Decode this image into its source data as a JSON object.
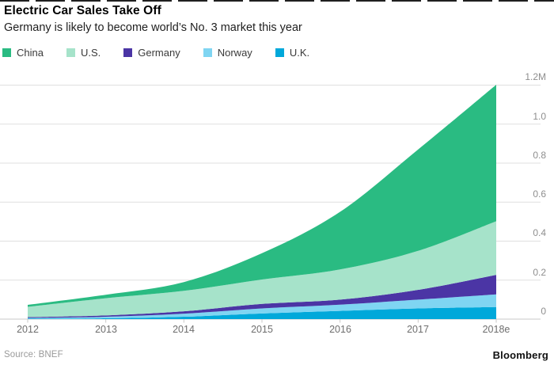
{
  "header": {
    "title": "Electric Car Sales Take Off",
    "subtitle": "Germany is likely to become world’s No. 3 market this year"
  },
  "legend": {
    "items": [
      {
        "label": "China",
        "color": "#2abb82"
      },
      {
        "label": "U.S.",
        "color": "#a6e3ca"
      },
      {
        "label": "Germany",
        "color": "#4b35a5"
      },
      {
        "label": "Norway",
        "color": "#7fd5f2"
      },
      {
        "label": "U.K.",
        "color": "#00a8da"
      }
    ]
  },
  "axes": {
    "y_labels": [
      "1.2M",
      "1.0",
      "0.8",
      "0.6",
      "0.4",
      "0.2",
      "0"
    ],
    "grid_color": "#dfdfdf",
    "axis_color": "#c9c9c9"
  },
  "chart_data": {
    "type": "area",
    "stacked": true,
    "title": "Electric Car Sales Take Off",
    "subtitle": "Germany is likely to become world’s No. 3 market this year",
    "unit": "millions of vehicles sold",
    "categories": [
      "2012",
      "2013",
      "2014",
      "2015",
      "2016",
      "2017",
      "2018e"
    ],
    "series": [
      {
        "name": "China",
        "color": "#2abb82",
        "values": [
          0.01,
          0.018,
          0.045,
          0.135,
          0.295,
          0.52,
          0.7
        ]
      },
      {
        "name": "U.S.",
        "color": "#a6e3ca",
        "values": [
          0.053,
          0.088,
          0.105,
          0.125,
          0.155,
          0.2,
          0.275
        ]
      },
      {
        "name": "Germany",
        "color": "#4b35a5",
        "values": [
          0.004,
          0.007,
          0.012,
          0.023,
          0.026,
          0.05,
          0.1
        ]
      },
      {
        "name": "Norway",
        "color": "#7fd5f2",
        "values": [
          0.004,
          0.008,
          0.016,
          0.026,
          0.032,
          0.045,
          0.065
        ]
      },
      {
        "name": "U.K.",
        "color": "#00a8da",
        "values": [
          0.002,
          0.004,
          0.012,
          0.029,
          0.042,
          0.055,
          0.062
        ]
      }
    ],
    "stack_order_bottom_to_top": [
      "U.K.",
      "Norway",
      "Germany",
      "U.S.",
      "China"
    ],
    "ylim": [
      0,
      1.2
    ],
    "y_ticks": [
      "0",
      "0.2",
      "0.4",
      "0.6",
      "0.8",
      "1.0",
      "1.2M"
    ],
    "grid": "horizontal",
    "legend_position": "top"
  },
  "footer": {
    "source": "Source: BNEF",
    "brand": "Bloomberg"
  }
}
